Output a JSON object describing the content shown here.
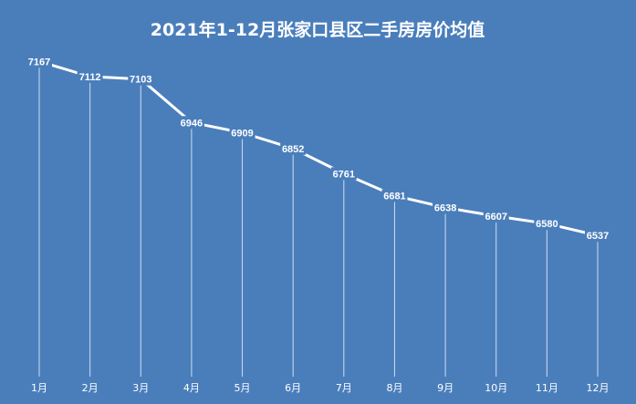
{
  "chart_data": {
    "type": "line",
    "title": "2021年1-12月张家口县区二手房房价均值",
    "xlabel": "",
    "ylabel": "",
    "categories": [
      "1月",
      "2月",
      "3月",
      "4月",
      "5月",
      "6月",
      "7月",
      "8月",
      "9月",
      "10月",
      "11月",
      "12月"
    ],
    "series": [
      {
        "values": [
          7167,
          7112,
          7103,
          6946,
          6909,
          6852,
          6761,
          6681,
          6638,
          6607,
          6580,
          6537
        ]
      }
    ],
    "ylim": [
      6000,
      7300
    ],
    "grid": false,
    "legend": "none",
    "data_labels": true,
    "drop_lines": true
  },
  "colors": {
    "background": "#4a7ebb",
    "line": "#ffffff",
    "drop_line": "#cfdcee",
    "text": "#ffffff"
  }
}
